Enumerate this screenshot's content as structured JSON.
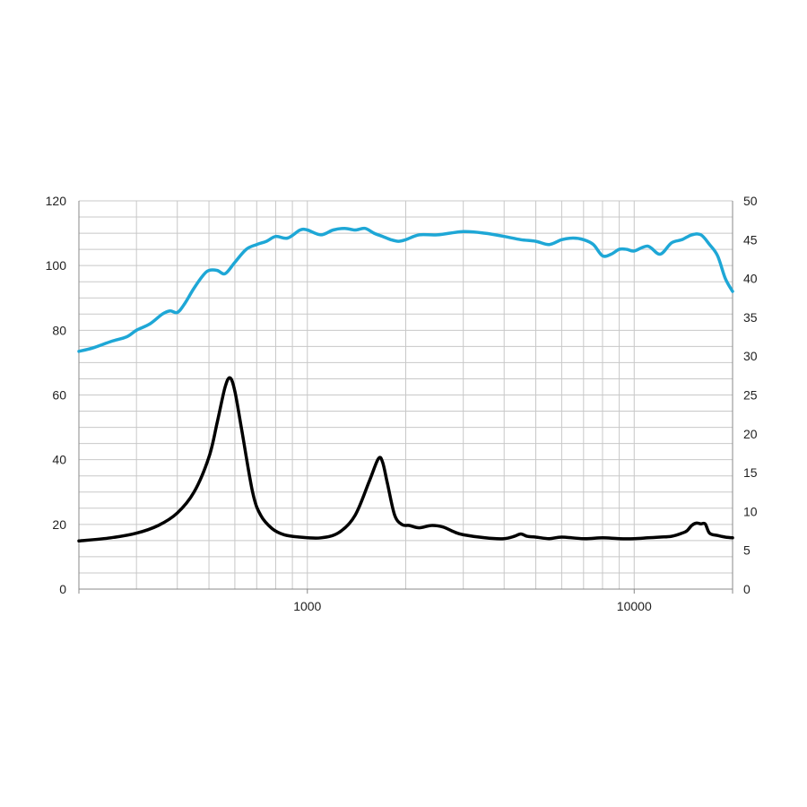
{
  "chart_data": {
    "type": "line",
    "title": "",
    "xlabel": "",
    "ylabel": "",
    "y2label": "",
    "x_scale": "log",
    "xlim": [
      200,
      20000
    ],
    "ylim": [
      0,
      120
    ],
    "y2lim": [
      0,
      50
    ],
    "grid": true,
    "legend": "none",
    "x_tick_labels": [
      {
        "value": 1000,
        "label": "1000"
      },
      {
        "value": 10000,
        "label": "10000"
      }
    ],
    "y_ticks": [
      0,
      20,
      40,
      60,
      80,
      100,
      120
    ],
    "y2_ticks": [
      0,
      5,
      10,
      15,
      20,
      25,
      30,
      35,
      40,
      45,
      50
    ],
    "colors": {
      "spl": "#1ea7d6",
      "impedance": "#000000",
      "grid": "#c8c8c8",
      "axis": "#888888"
    },
    "series": [
      {
        "axis": "left",
        "color": "#1ea7d6",
        "x": [
          200,
          220,
          250,
          280,
          300,
          330,
          360,
          380,
          400,
          420,
          450,
          480,
          500,
          530,
          560,
          600,
          650,
          700,
          750,
          800,
          870,
          950,
          1000,
          1100,
          1200,
          1300,
          1400,
          1500,
          1600,
          1700,
          1800,
          1900,
          2000,
          2200,
          2500,
          3000,
          3500,
          4000,
          4500,
          5000,
          5500,
          6000,
          6500,
          7000,
          7500,
          8000,
          8500,
          9000,
          9500,
          10000,
          11000,
          12000,
          13000,
          14000,
          15000,
          16000,
          17000,
          18000,
          19000,
          20000
        ],
        "y": [
          73.5,
          74.5,
          76.5,
          78,
          80,
          82,
          85,
          86,
          85.5,
          88,
          93,
          97,
          98.5,
          98.5,
          97.5,
          101,
          105,
          106.5,
          107.5,
          109,
          108.5,
          111,
          111,
          109.5,
          111,
          111.5,
          111,
          111.5,
          110,
          109,
          108,
          107.5,
          108,
          109.5,
          109.5,
          110.5,
          110,
          109,
          108,
          107.5,
          106.5,
          108,
          108.5,
          108,
          106.5,
          103,
          103.5,
          105,
          105,
          104.5,
          106,
          103.5,
          107,
          108,
          109.5,
          109.5,
          106.5,
          103,
          96,
          92
        ]
      },
      {
        "axis": "right",
        "color": "#000000",
        "x": [
          200,
          250,
          300,
          350,
          400,
          450,
          500,
          530,
          560,
          580,
          600,
          630,
          680,
          720,
          780,
          850,
          950,
          1100,
          1250,
          1400,
          1550,
          1650,
          1700,
          1760,
          1850,
          1950,
          2050,
          2200,
          2400,
          2600,
          2800,
          3000,
          3500,
          4000,
          4300,
          4500,
          4700,
          5000,
          5500,
          6000,
          7000,
          8000,
          9000,
          10000,
          11000,
          12000,
          13000,
          14000,
          14500,
          15000,
          15500,
          16000,
          16500,
          17000,
          18000,
          19000,
          20000
        ],
        "y": [
          6.2,
          6.6,
          7.2,
          8.2,
          9.8,
          12.5,
          17,
          21.5,
          26,
          27.2,
          25.5,
          20.5,
          12.5,
          9.5,
          7.8,
          7,
          6.7,
          6.6,
          7.3,
          9.5,
          14,
          16.8,
          16.3,
          13.5,
          9.5,
          8.3,
          8.2,
          7.9,
          8.2,
          8,
          7.4,
          7,
          6.6,
          6.5,
          6.8,
          7.1,
          6.8,
          6.7,
          6.5,
          6.7,
          6.5,
          6.6,
          6.5,
          6.5,
          6.6,
          6.7,
          6.8,
          7.2,
          7.5,
          8.2,
          8.5,
          8.4,
          8.4,
          7.2,
          6.9,
          6.7,
          6.6
        ]
      }
    ]
  }
}
